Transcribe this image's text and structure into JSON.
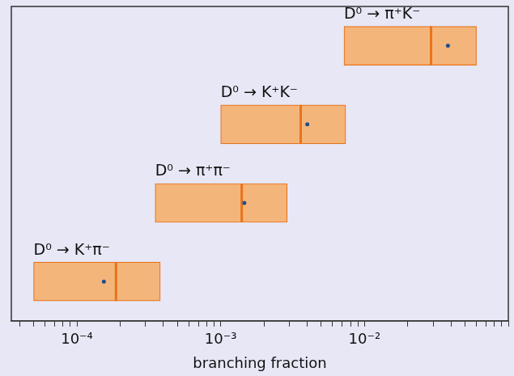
{
  "chart_data": {
    "type": "bar",
    "orientation": "horizontal",
    "log": "x",
    "xlabel": "branching fraction",
    "categories": [
      "D⁰ → π⁺K⁻",
      "D⁰ → K⁺K⁻",
      "D⁰ → π⁺π⁻",
      "D⁰ → K⁺π⁻"
    ],
    "ranges": [
      [
        0.0072,
        0.06
      ],
      [
        0.001,
        0.0074
      ],
      [
        0.00035,
        0.0029
      ],
      [
        5e-05,
        0.00038
      ]
    ],
    "central_values": [
      0.029,
      0.0036,
      0.0014,
      0.000187
    ],
    "values": [
      0.038,
      0.004,
      0.00146,
      0.000154
    ],
    "color": "#f4b57b",
    "xlim": [
      3.5e-05,
      0.1
    ],
    "xticks": [
      {
        "value": 0.0001,
        "label": "10⁻⁴"
      },
      {
        "value": 0.001,
        "label": "10⁻³"
      },
      {
        "value": 0.01,
        "label": "10⁻²"
      }
    ],
    "grid": false,
    "tick_labels": "x"
  }
}
